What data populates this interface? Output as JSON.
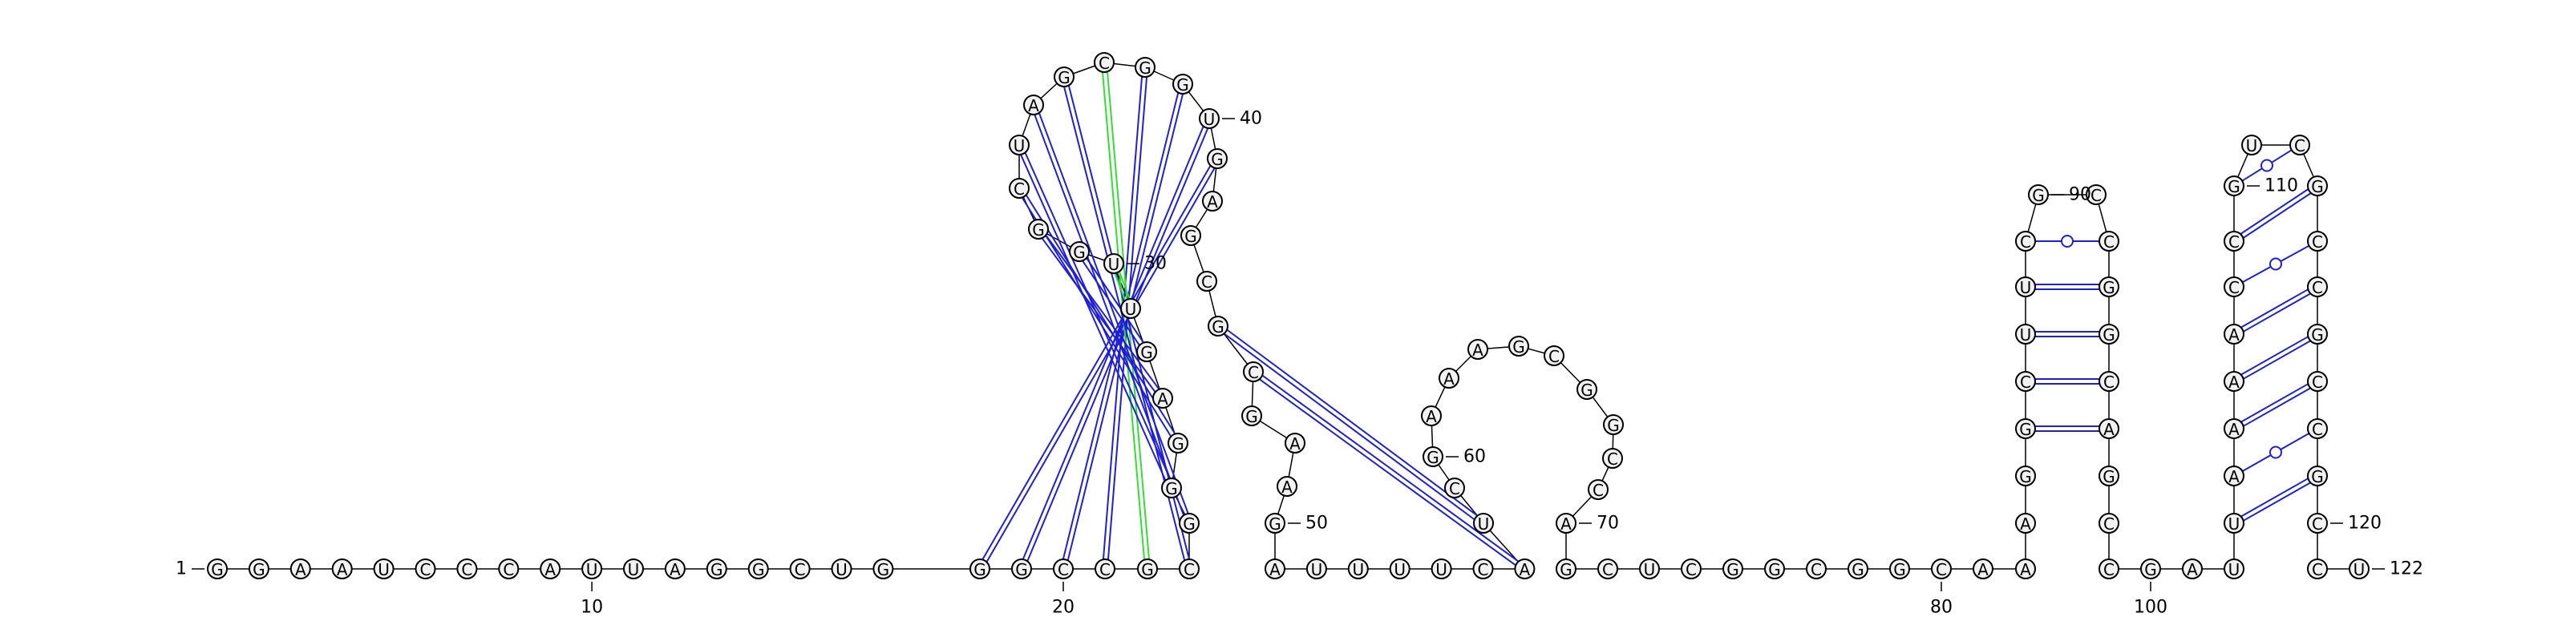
{
  "sequence": "GGAAUCCCAUUAGGCUGGGCCGCGGGAGUUGGCUAGCGGUGAGCGCGAAGAUUUUCAUCGAAAGCGGCCAGCUCGGCGGCAAAGGCUUCGCCGGCAGCCGAUUAAAACCGUCGCCGCCGCCU",
  "nucleotide_labels": [
    {
      "index": 1,
      "text": "1"
    },
    {
      "index": 10,
      "text": "10"
    },
    {
      "index": 20,
      "text": "20"
    },
    {
      "index": 30,
      "text": "30"
    },
    {
      "index": 40,
      "text": "40"
    },
    {
      "index": 50,
      "text": "50"
    },
    {
      "index": 60,
      "text": "60"
    },
    {
      "index": 70,
      "text": "70"
    },
    {
      "index": 80,
      "text": "80"
    },
    {
      "index": 90,
      "text": "90"
    },
    {
      "index": 100,
      "text": "100"
    },
    {
      "index": 110,
      "text": "110"
    },
    {
      "index": 120,
      "text": "120"
    },
    {
      "index": 122,
      "text": "122"
    }
  ],
  "pairs": [
    {
      "i": 18,
      "j": 41,
      "type": "canonical"
    },
    {
      "i": 19,
      "j": 40,
      "type": "canonical"
    },
    {
      "i": 20,
      "j": 39,
      "type": "canonical"
    },
    {
      "i": 21,
      "j": 38,
      "type": "canonical"
    },
    {
      "i": 22,
      "j": 37,
      "type": "noncanonical"
    },
    {
      "i": 23,
      "j": 36,
      "type": "canonical"
    },
    {
      "i": 24,
      "j": 35,
      "type": "canonical"
    },
    {
      "i": 25,
      "j": 34,
      "type": "canonical"
    },
    {
      "i": 26,
      "j": 33,
      "type": "canonical"
    },
    {
      "i": 27,
      "j": 32,
      "type": "canonical"
    },
    {
      "i": 28,
      "j": 31,
      "type": "canonical"
    },
    {
      "i": 29,
      "j": 30,
      "type": "noncanonical"
    },
    {
      "i": 57,
      "j": 46,
      "type": "canonical"
    },
    {
      "i": 58,
      "j": 45,
      "type": "canonical"
    },
    {
      "i": 85,
      "j": 96,
      "type": "canonical"
    },
    {
      "i": 86,
      "j": 95,
      "type": "canonical"
    },
    {
      "i": 87,
      "j": 94,
      "type": "canonical"
    },
    {
      "i": 88,
      "j": 93,
      "type": "canonical"
    },
    {
      "i": 89,
      "j": 92,
      "type": "gu"
    },
    {
      "i": 103,
      "j": 119,
      "type": "canonical"
    },
    {
      "i": 104,
      "j": 118,
      "type": "gu"
    },
    {
      "i": 105,
      "j": 117,
      "type": "canonical"
    },
    {
      "i": 106,
      "j": 116,
      "type": "canonical"
    },
    {
      "i": 107,
      "j": 115,
      "type": "canonical"
    },
    {
      "i": 108,
      "j": 114,
      "type": "gu"
    },
    {
      "i": 109,
      "j": 113,
      "type": "canonical"
    },
    {
      "i": 110,
      "j": 112,
      "type": "gu"
    }
  ],
  "colors": {
    "canonical_pair": "#1f1fd6",
    "noncanonical_pair": "#33dd33",
    "circle_fill": "#f2f2f2"
  }
}
